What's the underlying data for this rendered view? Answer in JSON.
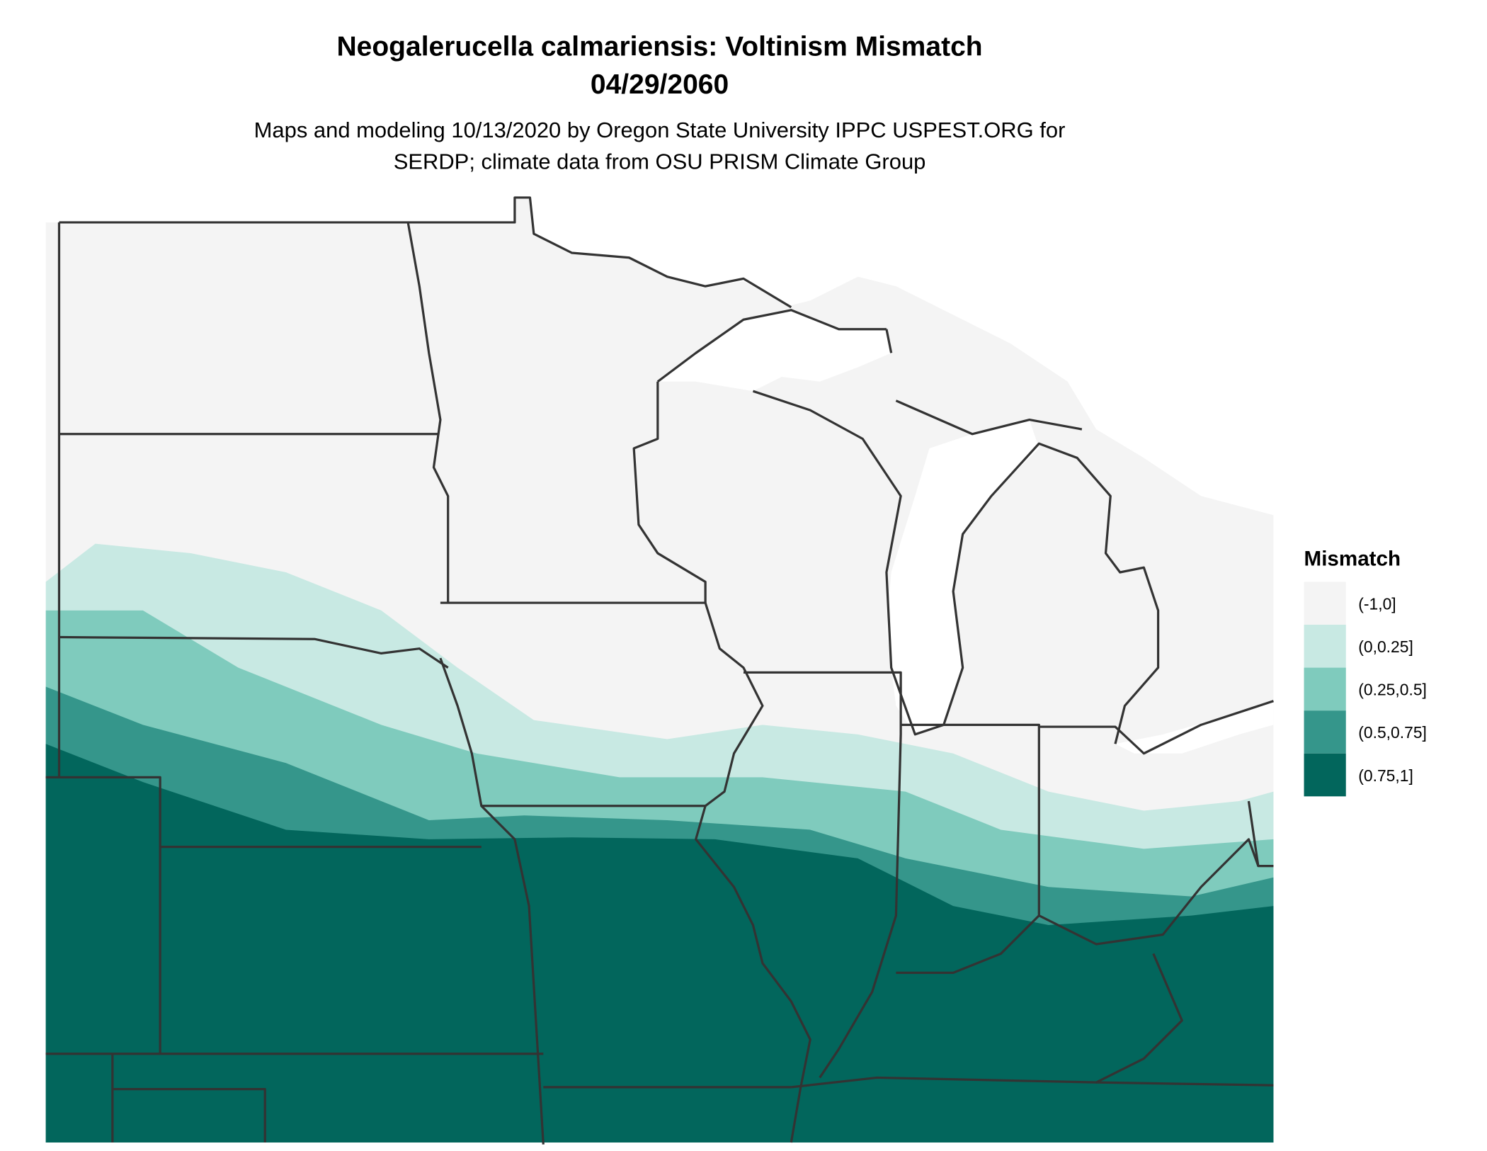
{
  "header": {
    "title": "Neogalerucella calmariensis: Voltinism Mismatch",
    "date": "04/29/2060",
    "subtitle": [
      "Maps and modeling 10/13/2020 by Oregon State University IPPC USPEST.ORG for",
      "SERDP; climate data from OSU PRISM Climate Group"
    ]
  },
  "legend": {
    "title": "Mismatch",
    "items": [
      {
        "label": "(-1,0]",
        "color": "#f4f4f4"
      },
      {
        "label": "(0,0.25]",
        "color": "#c8e9e3"
      },
      {
        "label": "(0.25,0.5]",
        "color": "#7fcbbd"
      },
      {
        "label": "(0.5,0.75]",
        "color": "#35968b"
      },
      {
        "label": "(0.75,1]",
        "color": "#02665c"
      }
    ]
  }
}
